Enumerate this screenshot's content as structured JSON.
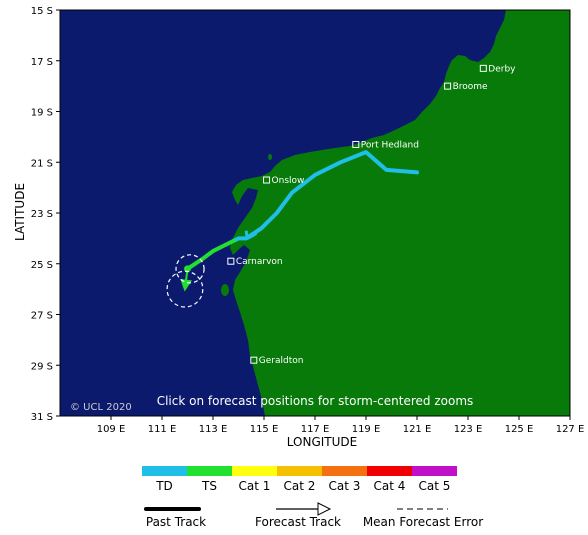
{
  "chart_data": {
    "type": "map",
    "xlabel": "LONGITUDE",
    "ylabel": "LATITUDE",
    "xlim": [
      107,
      127
    ],
    "ylim": [
      -31,
      -15
    ],
    "x_ticks": [
      "109 E",
      "111 E",
      "113 E",
      "115 E",
      "117 E",
      "119 E",
      "121 E",
      "123 E",
      "125 E",
      "127 E"
    ],
    "y_ticks": [
      "15 S",
      "17 S",
      "19 S",
      "21 S",
      "23 S",
      "25 S",
      "27 S",
      "29 S",
      "31 S"
    ],
    "places": [
      {
        "name": "Derby",
        "lon": 123.6,
        "lat": -17.3
      },
      {
        "name": "Broome",
        "lon": 122.2,
        "lat": -18.0
      },
      {
        "name": "Port Hedland",
        "lon": 118.6,
        "lat": -20.3
      },
      {
        "name": "Onslow",
        "lon": 115.1,
        "lat": -21.7
      },
      {
        "name": "Carnarvon",
        "lon": 113.7,
        "lat": -24.9
      },
      {
        "name": "Geraldton",
        "lon": 114.6,
        "lat": -28.8
      }
    ],
    "past_track_td": [
      [
        121.0,
        -21.4
      ],
      [
        119.8,
        -21.3
      ],
      [
        119.0,
        -20.6
      ],
      [
        118.0,
        -21.0
      ],
      [
        117.0,
        -21.5
      ],
      [
        116.1,
        -22.2
      ],
      [
        115.5,
        -23.0
      ],
      [
        114.9,
        -23.6
      ],
      [
        114.3,
        -24.0
      ],
      [
        114.0,
        -24.0
      ],
      [
        113.8,
        -24.1
      ]
    ],
    "past_track_ts": [
      [
        113.8,
        -24.1
      ],
      [
        113.4,
        -24.3
      ],
      [
        113.0,
        -24.5
      ],
      [
        112.6,
        -24.8
      ],
      [
        112.3,
        -25.0
      ],
      [
        112.0,
        -25.2
      ]
    ],
    "loop_td": [
      [
        114.3,
        -23.7
      ],
      [
        114.35,
        -24.0
      ],
      [
        114.55,
        -23.9
      ],
      [
        114.7,
        -23.8
      ]
    ],
    "forecast_arrow": [
      [
        112.0,
        -25.2
      ],
      [
        111.9,
        -26.0
      ]
    ],
    "forecast_error_circles": [
      {
        "lon": 112.1,
        "lat": -25.2,
        "radius_deg": 0.55
      },
      {
        "lon": 111.9,
        "lat": -26.0,
        "radius_deg": 0.7
      }
    ],
    "overlay_text": "Click on forecast positions for storm-centered zooms",
    "copyright": "© UCL 2020",
    "legend": {
      "categories": [
        {
          "label": "TD",
          "color": "#1fbfe8"
        },
        {
          "label": "TS",
          "color": "#22e030"
        },
        {
          "label": "Cat 1",
          "color": "#ffff10"
        },
        {
          "label": "Cat 2",
          "color": "#f5c000"
        },
        {
          "label": "Cat 3",
          "color": "#f57010"
        },
        {
          "label": "Cat 4",
          "color": "#f00000"
        },
        {
          "label": "Cat 5",
          "color": "#c010c8"
        }
      ],
      "track_types": [
        "Past Track",
        "Forecast Track",
        "Mean Forecast Error"
      ]
    },
    "colors": {
      "ocean": "#0c1a6e",
      "land": "#077a0a"
    }
  }
}
